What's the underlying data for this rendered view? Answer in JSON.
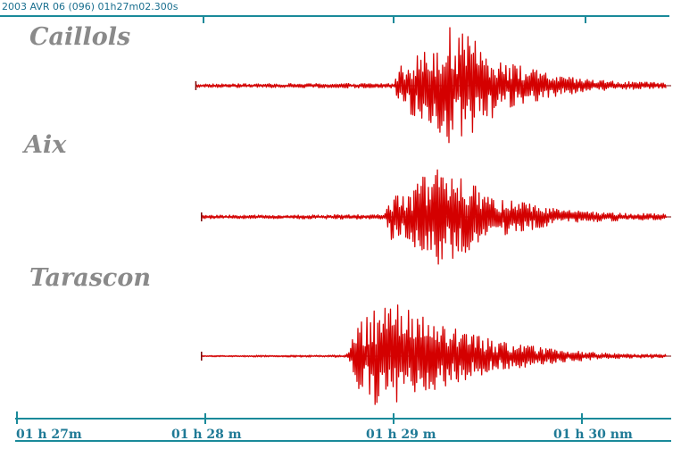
{
  "header": {
    "text": "2003 AVR 06 (096)  01h27m02.300s"
  },
  "colors": {
    "trace": "#d40000",
    "trace_dark": "#7a0000",
    "axis": "#1a8a9a",
    "label": "#8a8a8a"
  },
  "chart_data": {
    "type": "line",
    "title": "",
    "xlabel": "",
    "ylabel": "",
    "x_unit": "minutes",
    "xlim": [
      0,
      3.45
    ],
    "x_ticks": [
      0,
      1,
      2,
      3
    ],
    "x_tick_labels": [
      "01 h 27m",
      "01 h 28 m",
      "01 h 29 m",
      "01 h 30 nm"
    ],
    "grid": false,
    "series": [
      {
        "name": "Caillols",
        "record_start": 0.95,
        "p_arrival": 2.05,
        "s_arrival": 2.3,
        "peak_relative_amplitude": 1.0,
        "waveform_envelope": [
          [
            0.95,
            0.03
          ],
          [
            2.0,
            0.04
          ],
          [
            2.05,
            0.45
          ],
          [
            2.2,
            0.65
          ],
          [
            2.3,
            1.0
          ],
          [
            2.45,
            0.75
          ],
          [
            2.6,
            0.4
          ],
          [
            2.9,
            0.15
          ],
          [
            3.2,
            0.07
          ],
          [
            3.45,
            0.05
          ]
        ]
      },
      {
        "name": "Aix",
        "record_start": 0.98,
        "p_arrival": 1.98,
        "s_arrival": 2.2,
        "peak_relative_amplitude": 0.95,
        "waveform_envelope": [
          [
            0.98,
            0.03
          ],
          [
            1.95,
            0.04
          ],
          [
            1.98,
            0.4
          ],
          [
            2.1,
            0.5
          ],
          [
            2.2,
            0.95
          ],
          [
            2.35,
            0.7
          ],
          [
            2.55,
            0.35
          ],
          [
            2.9,
            0.12
          ],
          [
            3.2,
            0.07
          ],
          [
            3.45,
            0.05
          ]
        ]
      },
      {
        "name": "Tarascon",
        "record_start": 0.98,
        "p_arrival": 1.8,
        "s_arrival": 1.95,
        "peak_relative_amplitude": 1.0,
        "waveform_envelope": [
          [
            0.98,
            0.01
          ],
          [
            1.75,
            0.02
          ],
          [
            1.8,
            0.5
          ],
          [
            1.95,
            1.0
          ],
          [
            2.1,
            0.75
          ],
          [
            2.3,
            0.5
          ],
          [
            2.55,
            0.25
          ],
          [
            2.9,
            0.1
          ],
          [
            3.2,
            0.04
          ],
          [
            3.45,
            0.03
          ]
        ]
      }
    ]
  }
}
